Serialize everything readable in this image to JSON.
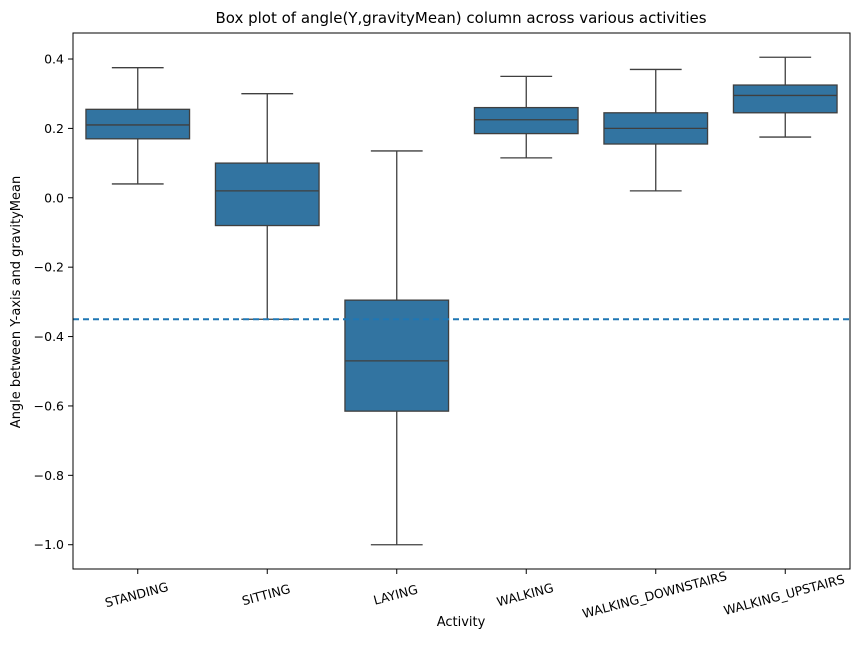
{
  "chart_data": {
    "type": "box",
    "title": "Box plot of angle(Y,gravityMean) column across various activities",
    "xlabel": "Activity",
    "ylabel": "Angle between Y-axis and gravityMean",
    "ylim": [
      -1.07,
      0.475
    ],
    "yticks": [
      0.4,
      0.2,
      0.0,
      -0.2,
      -0.4,
      -0.6,
      -0.8,
      -1.0
    ],
    "ytick_labels": [
      "0.4",
      "0.2",
      "0.0",
      "−0.2",
      "−0.4",
      "−0.6",
      "−0.8",
      "−1.0"
    ],
    "categories": [
      "STANDING",
      "SITTING",
      "LAYING",
      "WALKING",
      "WALKING_DOWNSTAIRS",
      "WALKING_UPSTAIRS"
    ],
    "boxes": [
      {
        "category": "STANDING",
        "whisker_low": 0.04,
        "q1": 0.17,
        "median": 0.21,
        "q3": 0.255,
        "whisker_high": 0.375
      },
      {
        "category": "SITTING",
        "whisker_low": -0.35,
        "q1": -0.08,
        "median": 0.02,
        "q3": 0.1,
        "whisker_high": 0.3
      },
      {
        "category": "LAYING",
        "whisker_low": -1.0,
        "q1": -0.615,
        "median": -0.47,
        "q3": -0.295,
        "whisker_high": 0.135
      },
      {
        "category": "WALKING",
        "whisker_low": 0.115,
        "q1": 0.185,
        "median": 0.225,
        "q3": 0.26,
        "whisker_high": 0.35
      },
      {
        "category": "WALKING_DOWNSTAIRS",
        "whisker_low": 0.02,
        "q1": 0.155,
        "median": 0.2,
        "q3": 0.245,
        "whisker_high": 0.37
      },
      {
        "category": "WALKING_UPSTAIRS",
        "whisker_low": 0.175,
        "q1": 0.245,
        "median": 0.295,
        "q3": 0.325,
        "whisker_high": 0.405
      }
    ],
    "reference_line": {
      "y": -0.35,
      "style": "dashed"
    },
    "grid": false,
    "colors": {
      "box_fill": "#3274a1",
      "box_edge": "#3f3f3f",
      "reference_line": "#1f77b4",
      "axis": "#000000"
    }
  }
}
